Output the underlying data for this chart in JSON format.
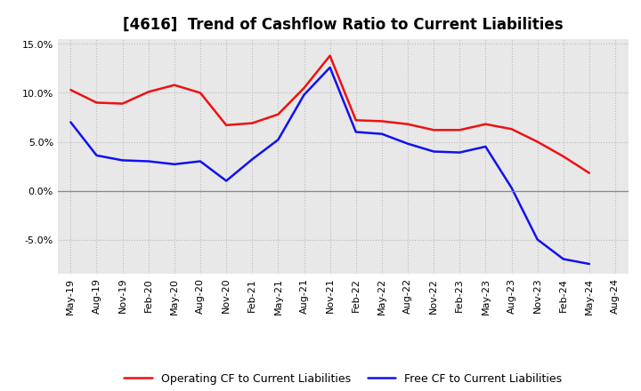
{
  "title": "[4616]  Trend of Cashflow Ratio to Current Liabilities",
  "x_labels": [
    "May-19",
    "Aug-19",
    "Nov-19",
    "Feb-20",
    "May-20",
    "Aug-20",
    "Nov-20",
    "Feb-21",
    "May-21",
    "Aug-21",
    "Nov-21",
    "Feb-22",
    "May-22",
    "Aug-22",
    "Nov-22",
    "Feb-23",
    "May-23",
    "Aug-23",
    "Nov-23",
    "Feb-24",
    "May-24",
    "Aug-24"
  ],
  "operating_cf": [
    10.3,
    9.0,
    8.9,
    10.1,
    10.8,
    10.0,
    6.7,
    6.9,
    7.8,
    10.5,
    13.8,
    7.2,
    7.1,
    6.8,
    6.2,
    6.2,
    6.8,
    6.3,
    5.0,
    3.5,
    1.8,
    null
  ],
  "free_cf": [
    7.0,
    3.6,
    3.1,
    3.0,
    2.7,
    3.0,
    1.0,
    3.2,
    5.2,
    9.8,
    12.6,
    6.0,
    5.8,
    4.8,
    4.0,
    3.9,
    4.5,
    0.3,
    -5.0,
    -7.0,
    -7.5,
    null
  ],
  "operating_color": "#EE1111",
  "free_color": "#1111EE",
  "ylim": [
    -8.5,
    15.5
  ],
  "yticks": [
    -5.0,
    0.0,
    5.0,
    10.0,
    15.0
  ],
  "plot_bg_color": "#E8E8E8",
  "background_color": "#FFFFFF",
  "grid_color": "#BBBBBB",
  "legend_op": "Operating CF to Current Liabilities",
  "legend_free": "Free CF to Current Liabilities",
  "title_fontsize": 12,
  "tick_fontsize": 8
}
